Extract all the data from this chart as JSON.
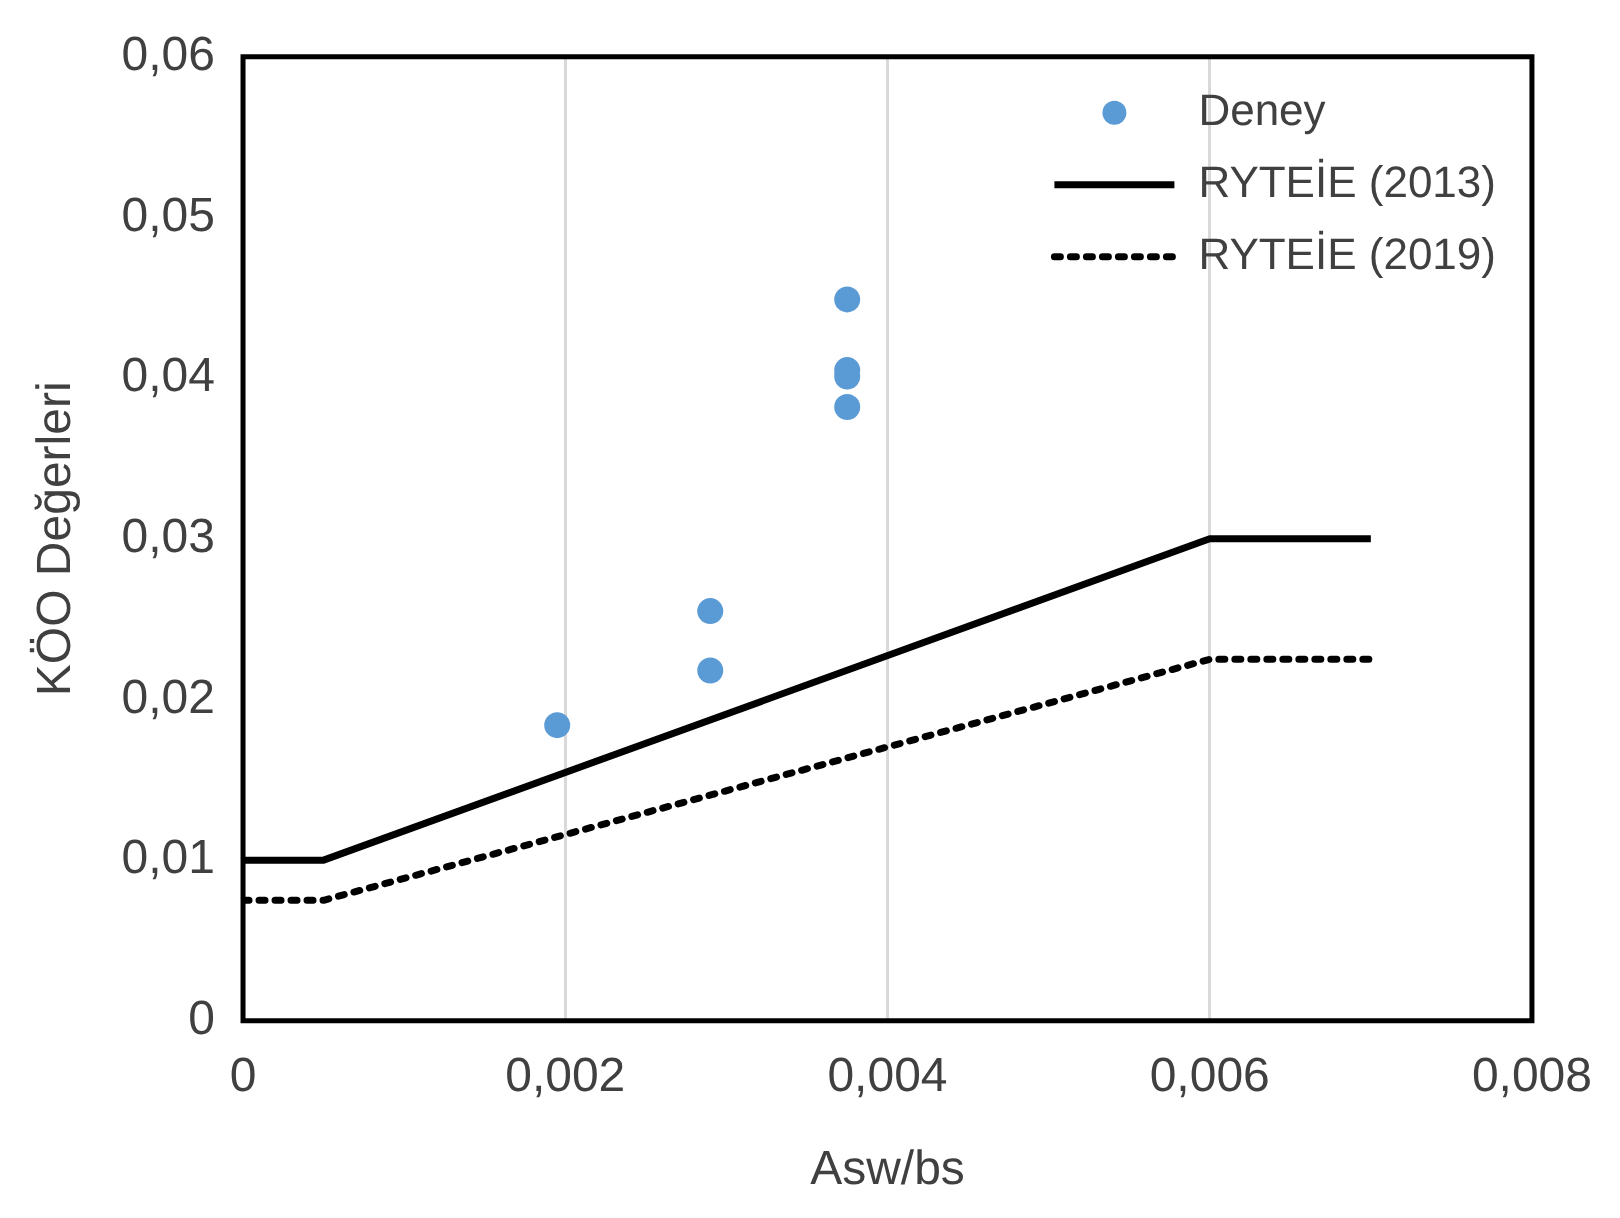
{
  "chart_data": {
    "type": "scatter",
    "xlabel": "Asw/bs",
    "ylabel": "KÖO Değerleri",
    "xlim": [
      0,
      0.008
    ],
    "xticks": [
      {
        "value": 0,
        "label": "0"
      },
      {
        "value": 0.002,
        "label": "0,002"
      },
      {
        "value": 0.004,
        "label": "0,004"
      },
      {
        "value": 0.006,
        "label": "0,006"
      },
      {
        "value": 0.008,
        "label": "0,008"
      }
    ],
    "ylim": [
      0,
      0.06
    ],
    "yticks": [
      {
        "value": 0,
        "label": "0"
      },
      {
        "value": 0.01,
        "label": "0,01"
      },
      {
        "value": 0.02,
        "label": "0,02"
      },
      {
        "value": 0.03,
        "label": "0,03"
      },
      {
        "value": 0.04,
        "label": "0,04"
      },
      {
        "value": 0.05,
        "label": "0,05"
      },
      {
        "value": 0.06,
        "label": "0,06"
      }
    ],
    "grid": "x",
    "legend": "top right",
    "series": [
      {
        "name": "Deney",
        "type": "scatter",
        "marker": "circle",
        "color": "#5b9bd5",
        "x": [
          0.00195,
          0.0029,
          0.0029,
          0.00375,
          0.00375,
          0.00375,
          0.00375
        ],
        "values": [
          0.0184,
          0.0255,
          0.0218,
          0.0449,
          0.0405,
          0.0401,
          0.0382
        ]
      },
      {
        "name": "RYTEİE (2013)",
        "type": "line",
        "marker": "none",
        "line_style": "solid",
        "color": "#000000",
        "x": [
          0,
          0.0005,
          0.006,
          0.007
        ],
        "values": [
          0.01,
          0.01,
          0.03,
          0.03
        ]
      },
      {
        "name": "RYTEİE (2019)",
        "type": "line",
        "marker": "none",
        "line_style": "dotted",
        "color": "#000000",
        "x": [
          0,
          0.0005,
          0.006,
          0.007
        ],
        "values": [
          0.0075,
          0.0075,
          0.0225,
          0.0225
        ]
      }
    ]
  }
}
